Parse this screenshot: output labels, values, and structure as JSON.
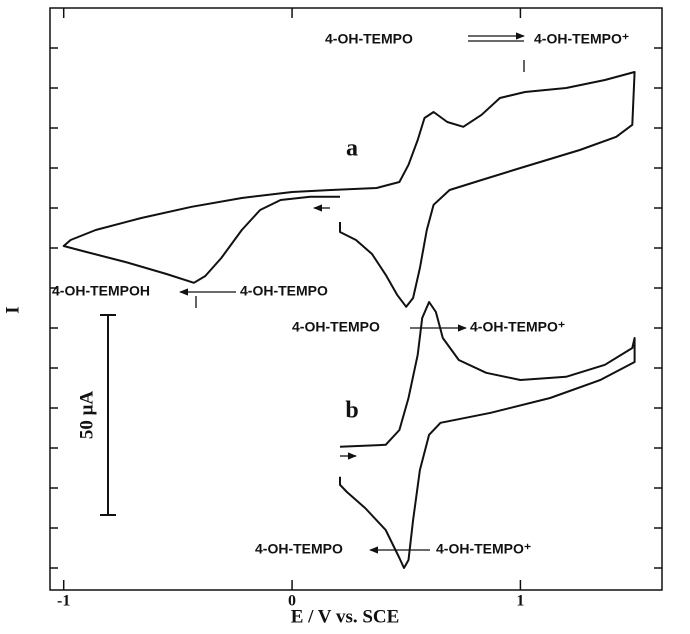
{
  "chart_data": {
    "type": "line",
    "xlabel": "E / V vs. SCE",
    "ylabel": "I",
    "xlim": [
      -1.06,
      1.62
    ],
    "ylim": [
      -5.5,
      140
    ],
    "xticks": [
      -1,
      0,
      1
    ],
    "yticks": [
      0,
      10,
      20,
      30,
      40,
      50,
      60,
      70,
      80,
      90,
      100,
      110,
      120,
      130
    ],
    "scale_bar": {
      "value": 50,
      "label": "50 μA"
    },
    "series": [
      {
        "name": "a",
        "color": "#111111",
        "x": [
          0.21,
          0.21,
          0.28,
          0.35,
          0.41,
          0.46,
          0.5,
          0.53,
          0.56,
          0.59,
          0.62,
          0.69,
          0.83,
          1.0,
          1.26,
          1.42,
          1.49,
          1.5,
          1.37,
          1.2,
          1.02,
          0.91,
          0.83,
          0.75,
          0.68,
          0.62,
          0.58,
          0.55,
          0.51,
          0.47,
          0.37,
          0.17,
          0.0,
          -0.22,
          -0.44,
          -0.66,
          -0.86,
          -0.97,
          -1.0,
          -0.9,
          -0.73,
          -0.55,
          -0.43,
          -0.38,
          -0.31,
          -0.22,
          -0.14,
          -0.05,
          0.08,
          0.21
        ],
        "values": [
          86.5,
          84.0,
          82.0,
          78.5,
          73.3,
          68.3,
          65.3,
          67.5,
          75.0,
          84.5,
          90.8,
          94.5,
          97.0,
          100.0,
          104.5,
          107.8,
          110.8,
          124.0,
          122.0,
          120.0,
          119.0,
          117.5,
          113.3,
          110.3,
          111.5,
          114.0,
          112.5,
          107.0,
          100.8,
          96.5,
          95.0,
          94.5,
          94.0,
          92.5,
          90.3,
          87.5,
          84.5,
          82.0,
          80.5,
          79.0,
          76.5,
          73.5,
          71.3,
          73.0,
          77.5,
          84.5,
          89.5,
          92.0,
          92.8,
          92.8
        ]
      },
      {
        "name": "b",
        "color": "#111111",
        "x": [
          0.21,
          0.41,
          0.47,
          0.51,
          0.55,
          0.57,
          0.6,
          0.63,
          0.66,
          0.73,
          0.85,
          1.0,
          1.2,
          1.37,
          1.49,
          1.5,
          1.5,
          1.35,
          1.13,
          0.87,
          0.65,
          0.6,
          0.56,
          0.53,
          0.51,
          0.49,
          0.47,
          0.41,
          0.32,
          0.24,
          0.21,
          0.21
        ],
        "values": [
          30.3,
          30.8,
          34.5,
          42.5,
          53.3,
          62.5,
          66.5,
          64.0,
          57.5,
          52.0,
          48.8,
          47.0,
          47.8,
          50.8,
          55.0,
          57.5,
          51.5,
          47.0,
          42.5,
          38.8,
          36.3,
          33.3,
          24.5,
          12.0,
          2.0,
          0.0,
          2.5,
          9.5,
          15.0,
          19.0,
          20.8,
          22.8
        ]
      }
    ],
    "annotations": [
      "4-OH-TEMPO",
      "4-OH-TEMPO⁺",
      "4-OH-TEMPOH",
      "4-OH-TEMPO",
      "4-OH-TEMPO",
      "4-OH-TEMPO⁺",
      "4-OH-TEMPO",
      "4-OH-TEMPO⁺"
    ]
  }
}
